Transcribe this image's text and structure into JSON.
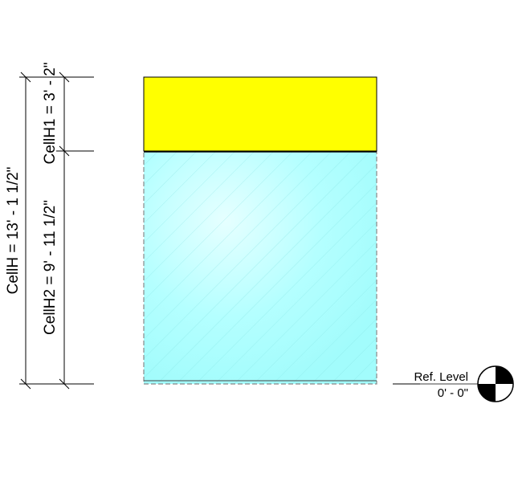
{
  "dimensions": {
    "total_height_label": "CellH = 13' - 1 1/2\"",
    "upper_cell_label": "CellH1 = 3' - 2\"",
    "lower_cell_label": "CellH2 = 9' - 11 1/2\""
  },
  "level": {
    "name": "Ref. Level",
    "elevation": "0' - 0\""
  },
  "colors": {
    "upper_cell_fill": "#ffff00",
    "lower_cell_fill": "#a8ffff",
    "hatch": "#7fe6e6",
    "lines": "#000000"
  }
}
